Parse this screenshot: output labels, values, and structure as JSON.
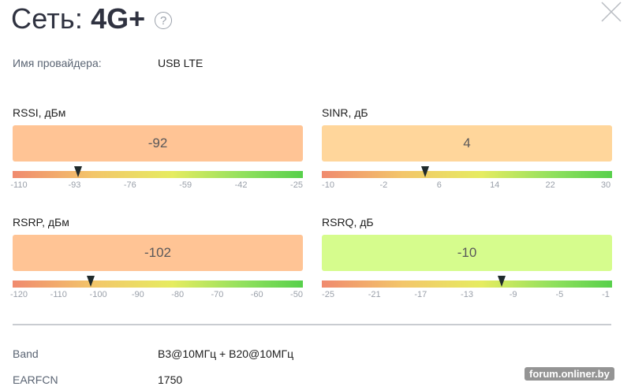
{
  "header": {
    "title": "Сеть:",
    "network_type": "4G+",
    "help_symbol": "?",
    "help_icon": "question-circle-icon",
    "close_icon": "close-x-icon"
  },
  "provider": {
    "label": "Имя провайдера:",
    "value": "USB LTE"
  },
  "metrics": [
    {
      "label": "RSSI, дБм",
      "value": "-92",
      "box_color": "#ffc495",
      "scale_min": -110,
      "scale_max": -25,
      "ticks": [
        "-110",
        "-93",
        "-76",
        "-59",
        "-42",
        "-25"
      ]
    },
    {
      "label": "SINR, дБ",
      "value": "4",
      "box_color": "#ffd69b",
      "scale_min": -10,
      "scale_max": 30,
      "ticks": [
        "-10",
        "-2",
        "6",
        "14",
        "22",
        "30"
      ]
    },
    {
      "label": "RSRP, дБм",
      "value": "-102",
      "box_color": "#ffc495",
      "scale_min": -120,
      "scale_max": -50,
      "ticks": [
        "-120",
        "-110",
        "-100",
        "-90",
        "-80",
        "-70",
        "-60",
        "-50"
      ]
    },
    {
      "label": "RSRQ, дБ",
      "value": "-10",
      "box_color": "#d6fc8d",
      "scale_min": -25,
      "scale_max": -1,
      "ticks": [
        "-25",
        "-21",
        "-17",
        "-13",
        "-9",
        "-5",
        "-1"
      ]
    }
  ],
  "details": [
    {
      "label": "Band",
      "value": "B3@10МГц + B20@10МГц"
    },
    {
      "label": "EARFCN",
      "value": "1750"
    }
  ],
  "watermark": "forum.onliner.by"
}
